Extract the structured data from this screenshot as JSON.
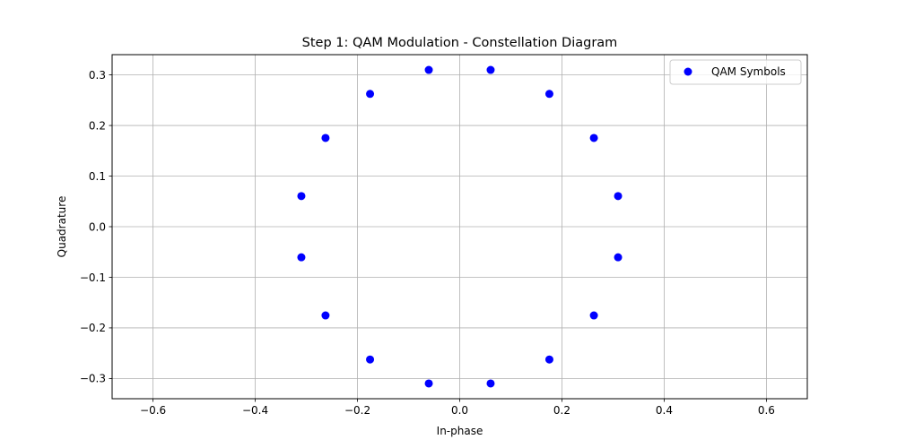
{
  "chart_data": {
    "type": "scatter",
    "title": "Step 1: QAM Modulation - Constellation Diagram",
    "xlabel": "In-phase",
    "ylabel": "Quadrature",
    "xlim": [
      -0.68,
      0.68
    ],
    "ylim": [
      -0.34,
      0.34
    ],
    "x_ticks": [
      -0.6,
      -0.4,
      -0.2,
      0.0,
      0.2,
      0.4,
      0.6
    ],
    "x_tick_labels": [
      "−0.6",
      "−0.4",
      "−0.2",
      "0.0",
      "0.2",
      "0.4",
      "0.6"
    ],
    "y_ticks": [
      -0.3,
      -0.2,
      -0.1,
      0.0,
      0.1,
      0.2,
      0.3
    ],
    "y_tick_labels": [
      "−0.3",
      "−0.2",
      "−0.1",
      "0.0",
      "0.1",
      "0.2",
      "0.3"
    ],
    "grid": true,
    "legend_position": "top-right",
    "series": [
      {
        "name": "QAM Symbols",
        "color": "#0000ff",
        "points": [
          {
            "x": -0.0605,
            "y": 0.3098
          },
          {
            "x": 0.0605,
            "y": 0.3098
          },
          {
            "x": 0.1754,
            "y": 0.2625
          },
          {
            "x": 0.2625,
            "y": 0.1754
          },
          {
            "x": 0.3098,
            "y": 0.0605
          },
          {
            "x": 0.3098,
            "y": -0.0605
          },
          {
            "x": 0.2625,
            "y": -0.1754
          },
          {
            "x": 0.1754,
            "y": -0.2625
          },
          {
            "x": 0.0605,
            "y": -0.3098
          },
          {
            "x": -0.0605,
            "y": -0.3098
          },
          {
            "x": -0.1754,
            "y": -0.2625
          },
          {
            "x": -0.2625,
            "y": -0.1754
          },
          {
            "x": -0.3098,
            "y": -0.0605
          },
          {
            "x": -0.3098,
            "y": 0.0605
          },
          {
            "x": -0.2625,
            "y": 0.1754
          },
          {
            "x": -0.1754,
            "y": 0.2625
          }
        ]
      }
    ]
  }
}
